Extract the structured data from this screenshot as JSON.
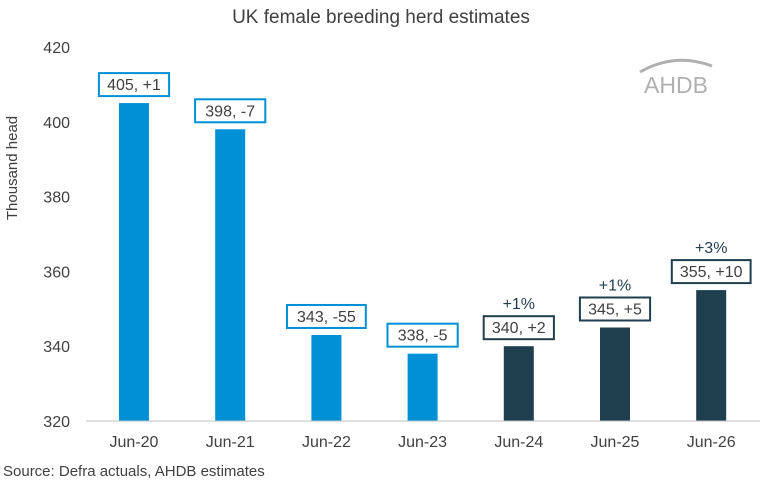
{
  "chart_data": {
    "type": "bar",
    "title": "UK female breeding herd estimates",
    "xlabel": "",
    "ylabel": "Thousand head",
    "ylim": [
      320,
      420
    ],
    "yticks": [
      320,
      340,
      360,
      380,
      400,
      420
    ],
    "categories": [
      "Jun-20",
      "Jun-21",
      "Jun-22",
      "Jun-23",
      "Jun-24",
      "Jun-25",
      "Jun-26"
    ],
    "values": [
      405,
      398,
      343,
      338,
      340,
      345,
      355
    ],
    "data_labels": [
      "405, +1",
      "398, -7",
      "343, -55",
      "338, -5",
      "340, +2",
      "345, +5",
      "355, +10"
    ],
    "pct_labels": [
      "",
      "",
      "",
      "",
      "+1%",
      "+1%",
      "+3%"
    ],
    "series_type": [
      "actual",
      "actual",
      "actual",
      "actual",
      "estimate",
      "estimate",
      "estimate"
    ],
    "colors": {
      "actual": "#0090D6",
      "estimate": "#1F3F4F"
    },
    "grid": false,
    "source": "Source: Defra actuals, AHDB estimates",
    "logo": "AHDB"
  }
}
